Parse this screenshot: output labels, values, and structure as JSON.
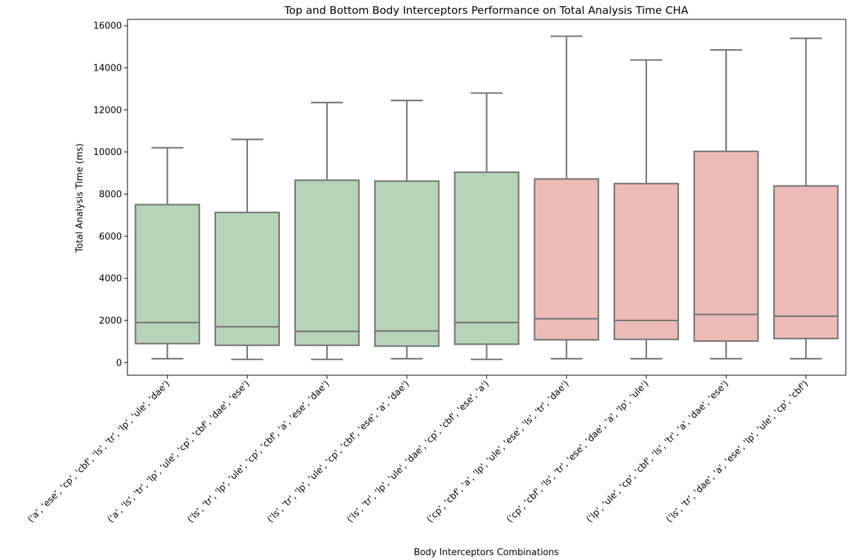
{
  "chart_data": {
    "type": "box",
    "title": "Top and Bottom Body Interceptors Performance on Total Analysis Time CHA",
    "xlabel": "Body Interceptors Combinations",
    "ylabel": "Total Analysis Time (ms)",
    "ylim": [
      -600,
      16300
    ],
    "yticks": [
      0,
      2000,
      4000,
      6000,
      8000,
      10000,
      12000,
      14000,
      16000
    ],
    "grid": false,
    "colors": {
      "top": "#b6d3b8",
      "bottom": "#ecbab7",
      "line": "#767676"
    },
    "boxes": [
      {
        "label": "('a', 'ese', 'cp', 'cbf', 'ls', 'tr', 'lp', 'ule', 'dae')",
        "group": "top",
        "whisker_low": 180,
        "q1": 900,
        "median": 1900,
        "q3": 7500,
        "whisker_high": 10200
      },
      {
        "label": "('a', 'ls', 'tr', 'lp', 'ule', 'cp', 'cbf', 'dae', 'ese')",
        "group": "top",
        "whisker_low": 150,
        "q1": 820,
        "median": 1700,
        "q3": 7130,
        "whisker_high": 10600
      },
      {
        "label": "('ls', 'tr', 'lp', 'ule', 'cp', 'cbf', 'a', 'ese', 'dae')",
        "group": "top",
        "whisker_low": 150,
        "q1": 820,
        "median": 1480,
        "q3": 8660,
        "whisker_high": 12350
      },
      {
        "label": "('ls', 'tr', 'lp', 'ule', 'cp', 'cbf', 'ese', 'a', 'dae')",
        "group": "top",
        "whisker_low": 180,
        "q1": 780,
        "median": 1500,
        "q3": 8620,
        "whisker_high": 12450
      },
      {
        "label": "('ls', 'tr', 'lp', 'ule', 'dae', 'cp', 'cbf', 'ese', 'a')",
        "group": "top",
        "whisker_low": 150,
        "q1": 870,
        "median": 1900,
        "q3": 9040,
        "whisker_high": 12800
      },
      {
        "label": "('cp', 'cbf', 'a', 'lp', 'ule', 'ese', 'ls', 'tr', 'dae')",
        "group": "bottom",
        "whisker_low": 180,
        "q1": 1080,
        "median": 2080,
        "q3": 8720,
        "whisker_high": 15500
      },
      {
        "label": "('cp', 'cbf', 'ls', 'tr', 'ese', 'dae', 'a', 'lp', 'ule')",
        "group": "bottom",
        "whisker_low": 180,
        "q1": 1100,
        "median": 2000,
        "q3": 8500,
        "whisker_high": 14370
      },
      {
        "label": "('lp', 'ule', 'cp', 'cbf', 'ls', 'tr', 'a', 'dae', 'ese')",
        "group": "bottom",
        "whisker_low": 180,
        "q1": 1020,
        "median": 2280,
        "q3": 10030,
        "whisker_high": 14850
      },
      {
        "label": "('ls', 'tr', 'dae', 'a', 'ese', 'lp', 'ule', 'cp', 'cbf')",
        "group": "bottom",
        "whisker_low": 180,
        "q1": 1140,
        "median": 2200,
        "q3": 8390,
        "whisker_high": 15400
      }
    ]
  }
}
